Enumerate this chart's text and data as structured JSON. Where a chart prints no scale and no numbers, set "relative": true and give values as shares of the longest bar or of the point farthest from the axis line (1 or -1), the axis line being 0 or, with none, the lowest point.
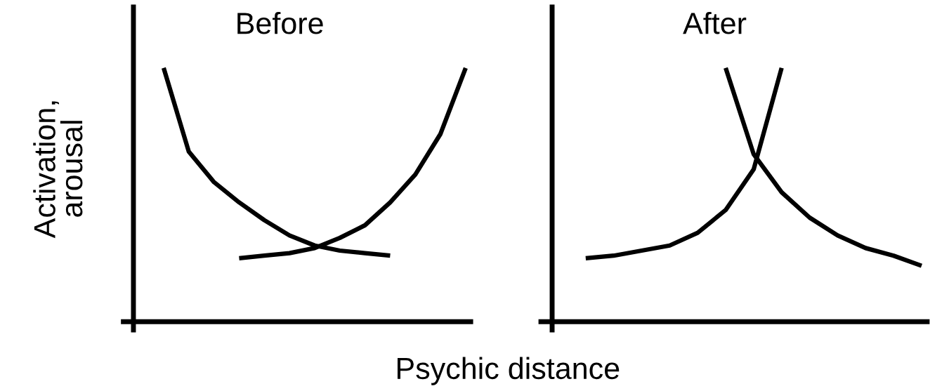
{
  "chart_data": [
    {
      "type": "line",
      "title": "Before",
      "ylabel": "Activation,\narousal",
      "relative": true,
      "legend": false,
      "marker": "none",
      "line_style": "solid",
      "categories": [
        null,
        null,
        null,
        null,
        null,
        null,
        null,
        null,
        null,
        null,
        null,
        null,
        null
      ],
      "series": [
        {
          "color": "#000000",
          "values": [
            1.0,
            0.67,
            0.55,
            0.47,
            0.4,
            0.34,
            0.3,
            0.28,
            0.27,
            0.26,
            null,
            null,
            null
          ]
        },
        {
          "color": "#000000",
          "values": [
            null,
            null,
            null,
            0.25,
            0.26,
            0.27,
            0.29,
            0.33,
            0.38,
            0.47,
            0.58,
            0.74,
            1.0
          ]
        }
      ]
    },
    {
      "type": "line",
      "title": "After",
      "xlabel": "Psychic distance",
      "relative": true,
      "legend": false,
      "marker": "none",
      "line_style": "solid",
      "categories": [
        null,
        null,
        null,
        null,
        null,
        null,
        null,
        null,
        null,
        null,
        null,
        null,
        null
      ],
      "series": [
        {
          "color": "#000000",
          "values": [
            0.25,
            0.26,
            0.28,
            0.3,
            0.35,
            0.44,
            0.6,
            1.0,
            null,
            null,
            null,
            null,
            null
          ]
        },
        {
          "color": "#000000",
          "values": [
            null,
            null,
            null,
            null,
            null,
            1.0,
            0.66,
            0.51,
            0.41,
            0.34,
            0.29,
            0.26,
            0.22
          ]
        }
      ]
    }
  ]
}
